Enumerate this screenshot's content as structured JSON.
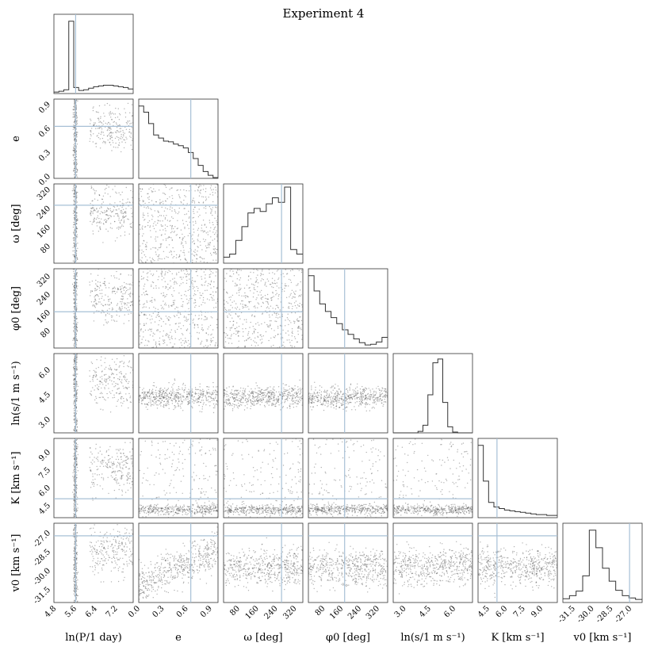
{
  "chart_data": {
    "type": "scatter",
    "title": "Experiment 4",
    "parameters": [
      {
        "key": "lnP",
        "label": "ln(P/1 day)",
        "range": [
          4.7,
          7.8
        ],
        "ticks": [
          "4.8",
          "5.6",
          "6.4",
          "7.2"
        ],
        "truth": 5.55
      },
      {
        "key": "e",
        "label": "e",
        "range": [
          -0.02,
          0.97
        ],
        "ticks": [
          "0.0",
          "0.3",
          "0.6",
          "0.9"
        ],
        "truth": 0.63
      },
      {
        "key": "omega",
        "label": "ω [deg]",
        "range": [
          10,
          345
        ],
        "ticks": [
          "80",
          "160",
          "240",
          "320"
        ],
        "truth": 255
      },
      {
        "key": "phi0",
        "label": "φ0 [deg]",
        "range": [
          5,
          355
        ],
        "ticks": [
          "80",
          "160",
          "240",
          "320"
        ],
        "truth": 165
      },
      {
        "key": "lns",
        "label": "ln(s/1 m s⁻¹)",
        "range": [
          2.2,
          7.0
        ],
        "ticks": [
          "3.0",
          "4.5",
          "6.0"
        ],
        "truth": null
      },
      {
        "key": "K",
        "label": "K [km s⁻¹]",
        "range": [
          3.5,
          10.2
        ],
        "ticks": [
          "4.5",
          "6.0",
          "7.5",
          "9.0"
        ],
        "truth": 5.1
      },
      {
        "key": "v0",
        "label": "v0 [km s⁻¹]",
        "range": [
          -32.5,
          -26.2
        ],
        "ticks": [
          "-31.5",
          "-30.0",
          "-28.5",
          "-27.0"
        ],
        "truth": -27.2
      }
    ],
    "ylabels": [
      "",
      "e",
      "ω [deg]",
      "φ0 [deg]",
      "ln(s/1 m s⁻¹)",
      "K [km s⁻¹]",
      "v0 [km s⁻¹]"
    ],
    "histograms": [
      [
        2,
        3,
        5,
        95,
        8,
        4,
        5,
        7,
        9,
        10,
        11,
        11,
        10,
        9,
        8,
        6
      ],
      [
        95,
        87,
        72,
        57,
        53,
        49,
        48,
        45,
        43,
        40,
        34,
        26,
        17,
        9,
        4,
        1
      ],
      [
        8,
        12,
        30,
        48,
        66,
        72,
        68,
        78,
        86,
        80,
        100,
        18,
        12
      ],
      [
        95,
        75,
        58,
        48,
        40,
        32,
        24,
        18,
        12,
        7,
        4,
        5,
        8,
        14
      ],
      [
        0,
        0,
        0,
        0,
        0,
        2,
        10,
        50,
        92,
        97,
        40,
        8,
        1,
        0,
        0,
        0
      ],
      [
        95,
        48,
        20,
        14,
        12,
        10,
        9,
        8,
        7,
        6,
        5,
        4,
        4,
        3,
        3
      ],
      [
        5,
        9,
        15,
        35,
        95,
        72,
        45,
        28,
        16,
        9,
        6,
        4
      ]
    ]
  }
}
